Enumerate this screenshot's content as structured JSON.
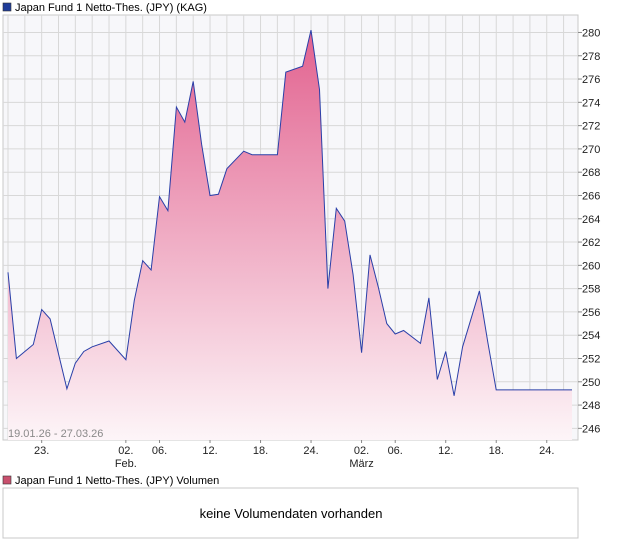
{
  "chart_data": {
    "type": "area",
    "title": "Japan Fund 1 Netto-Thes. (JPY) (KAG)",
    "date_range": "19.01.26 - 27.03.26",
    "ylim": [
      245,
      281.5
    ],
    "y_ticks": [
      246,
      248,
      250,
      252,
      254,
      256,
      258,
      260,
      262,
      264,
      266,
      268,
      270,
      272,
      274,
      276,
      278,
      280
    ],
    "x_ticks": [
      {
        "label": "23.",
        "sub": "",
        "day": 4
      },
      {
        "label": "02.",
        "sub": "Feb.",
        "day": 14
      },
      {
        "label": "06.",
        "sub": "",
        "day": 18
      },
      {
        "label": "12.",
        "sub": "",
        "day": 24
      },
      {
        "label": "18.",
        "sub": "",
        "day": 30
      },
      {
        "label": "24.",
        "sub": "",
        "day": 36
      },
      {
        "label": "02.",
        "sub": "März",
        "day": 42
      },
      {
        "label": "06.",
        "sub": "",
        "day": 46
      },
      {
        "label": "12.",
        "sub": "",
        "day": 52
      },
      {
        "label": "18.",
        "sub": "",
        "day": 58
      },
      {
        "label": "24.",
        "sub": "",
        "day": 64
      }
    ],
    "x_domain": [
      0,
      67
    ],
    "series": [
      {
        "name": "Japan Fund 1 Netto-Thes. (JPY)",
        "x": [
          0,
          1,
          3,
          4,
          5,
          7,
          8,
          9,
          10,
          12,
          14,
          15,
          16,
          17,
          18,
          19,
          20,
          21,
          22,
          23,
          24,
          25,
          26,
          28,
          29,
          30,
          31,
          32,
          33,
          35,
          36,
          37,
          38,
          39,
          40,
          41,
          42,
          43,
          44,
          45,
          46,
          47,
          49,
          50,
          51,
          52,
          53,
          54,
          56,
          57,
          58,
          59,
          60,
          61,
          62,
          63,
          64,
          65,
          66,
          67
        ],
        "values": [
          259.4,
          252.0,
          253.2,
          256.2,
          255.4,
          249.4,
          251.6,
          252.6,
          253.0,
          253.5,
          251.9,
          257.0,
          260.4,
          259.6,
          265.9,
          264.7,
          273.6,
          272.3,
          275.8,
          270.4,
          266.0,
          266.1,
          268.3,
          269.8,
          269.5,
          269.5,
          269.5,
          269.5,
          276.6,
          277.1,
          280.2,
          275.1,
          258.0,
          264.9,
          263.8,
          259.2,
          252.5,
          260.9,
          258.1,
          255.0,
          254.1,
          254.4,
          253.3,
          257.2,
          250.2,
          252.6,
          248.8,
          253.0,
          257.8,
          253.4,
          249.3,
          249.3,
          249.3,
          249.3,
          249.3,
          249.3,
          249.3,
          249.3,
          249.3,
          249.3
        ]
      }
    ],
    "volume_legend": "Japan Fund 1 Netto-Thes. (JPY) Volumen",
    "volume_message": "keine Volumendaten vorhanden",
    "colors": {
      "line": "#2a3fa8",
      "area_top": "#e2628f",
      "area_bottom": "#fdf5f8",
      "grid": "#d8d8d8",
      "plot_bg": "#f7f7fa",
      "legend_swatch_price": "#1f3c99",
      "legend_swatch_volume": "#c9506e"
    }
  }
}
